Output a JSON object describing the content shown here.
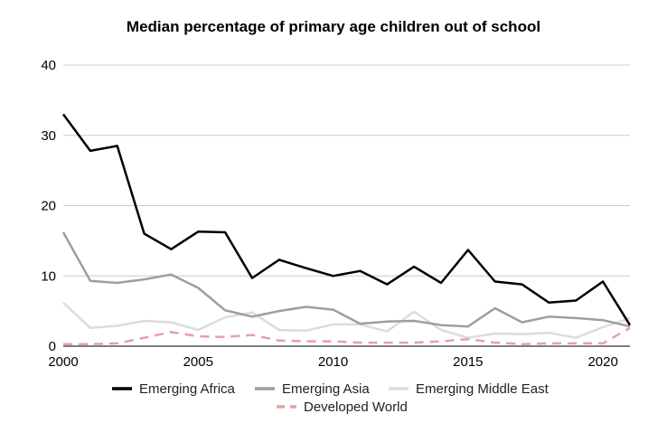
{
  "chart_data": {
    "type": "line",
    "title": "Median percentage of primary age children out of school",
    "xlabel": "",
    "ylabel": "",
    "x": [
      2000,
      2001,
      2002,
      2003,
      2004,
      2005,
      2006,
      2007,
      2008,
      2009,
      2010,
      2011,
      2012,
      2013,
      2014,
      2015,
      2016,
      2017,
      2018,
      2019,
      2020,
      2021
    ],
    "xlim": [
      2000,
      2021
    ],
    "ylim": [
      0,
      40
    ],
    "x_ticks": [
      2000,
      2005,
      2010,
      2015,
      2020
    ],
    "y_ticks": [
      0,
      10,
      20,
      30,
      40
    ],
    "grid": "horizontal",
    "legend_position": "bottom",
    "series": [
      {
        "name": "Emerging Africa",
        "color": "#000000",
        "dash": "solid",
        "values": [
          33.0,
          27.8,
          28.5,
          16.0,
          13.8,
          16.3,
          16.2,
          9.7,
          12.3,
          11.1,
          10.0,
          10.7,
          8.8,
          11.3,
          9.0,
          13.7,
          9.2,
          8.8,
          6.2,
          6.5,
          9.2,
          3.0
        ]
      },
      {
        "name": "Emerging Asia",
        "color": "#9e9e9e",
        "dash": "solid",
        "values": [
          16.2,
          9.3,
          9.0,
          9.5,
          10.2,
          8.3,
          5.1,
          4.2,
          5.0,
          5.6,
          5.2,
          3.2,
          3.5,
          3.6,
          3.0,
          2.8,
          5.4,
          3.4,
          4.2,
          4.0,
          3.7,
          2.8
        ]
      },
      {
        "name": "Emerging Middle East",
        "color": "#dcdcdc",
        "dash": "solid",
        "values": [
          6.2,
          2.6,
          2.9,
          3.6,
          3.4,
          2.3,
          4.1,
          4.8,
          2.3,
          2.2,
          3.1,
          3.1,
          2.1,
          4.9,
          2.3,
          1.2,
          1.8,
          1.7,
          1.9,
          1.2,
          2.7,
          4.0
        ]
      },
      {
        "name": "Developed World",
        "color": "#e8a0a0",
        "dash": "dashed",
        "values": [
          0.3,
          0.3,
          0.4,
          1.2,
          2.0,
          1.4,
          1.3,
          1.6,
          0.8,
          0.7,
          0.7,
          0.5,
          0.5,
          0.5,
          0.7,
          1.0,
          0.5,
          0.3,
          0.4,
          0.4,
          0.4,
          2.6
        ]
      }
    ]
  }
}
